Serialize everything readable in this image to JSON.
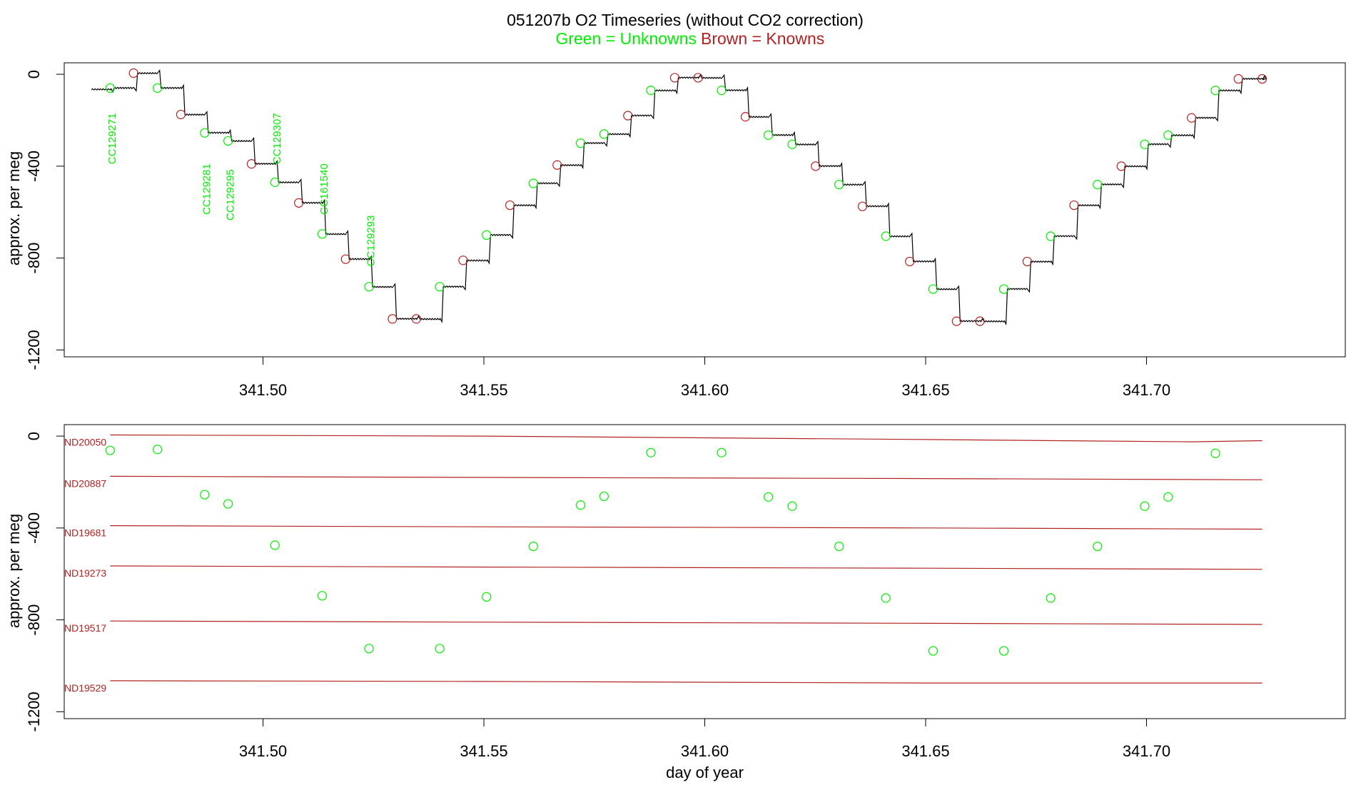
{
  "colors": {
    "unknown": "#00ee00",
    "known": "#b22222",
    "trace": "#000000",
    "axis": "#000000"
  },
  "header": {
    "title": "051207b   O2 Timeseries (without CO2 correction)",
    "legend_unknown": "Green = Unknowns",
    "legend_known": "Brown = Knowns"
  },
  "chart_data": [
    {
      "type": "line",
      "title": "051207b   O2 Timeseries (without CO2 correction)",
      "xlabel": "",
      "ylabel": "approx. per meg",
      "xlim": [
        341.455,
        341.745
      ],
      "ylim": [
        -1230,
        50
      ],
      "xticks": [
        341.5,
        341.55,
        341.6,
        341.65,
        341.7
      ],
      "xtick_labels": [
        "341.50",
        "341.55",
        "341.60",
        "341.65",
        "341.70"
      ],
      "yticks": [
        0,
        -400,
        -800,
        -1200
      ],
      "ytick_labels": [
        "0",
        "-400",
        "-800",
        "-1200"
      ],
      "grid": false,
      "trace_levels": [
        [
          341.4602,
          -65
        ],
        [
          341.4656,
          -60
        ],
        [
          341.4709,
          5
        ],
        [
          341.4762,
          -60
        ],
        [
          341.4816,
          -175
        ],
        [
          341.4869,
          -255
        ],
        [
          341.4922,
          -290
        ],
        [
          341.4975,
          -390
        ],
        [
          341.5028,
          -470
        ],
        [
          341.5082,
          -560
        ],
        [
          341.5135,
          -695
        ],
        [
          341.5188,
          -805
        ],
        [
          341.5241,
          -925
        ],
        [
          341.5295,
          -1065
        ],
        [
          341.5348,
          -1065
        ],
        [
          341.5401,
          -925
        ],
        [
          341.5454,
          -810
        ],
        [
          341.5508,
          -700
        ],
        [
          341.5561,
          -570
        ],
        [
          341.5614,
          -475
        ],
        [
          341.5667,
          -395
        ],
        [
          341.572,
          -300
        ],
        [
          341.5774,
          -260
        ],
        [
          341.5827,
          -180
        ],
        [
          341.588,
          -70
        ],
        [
          341.5933,
          -15
        ],
        [
          341.5986,
          -15
        ],
        [
          341.604,
          -70
        ],
        [
          341.6093,
          -185
        ],
        [
          341.6146,
          -265
        ],
        [
          341.6199,
          -305
        ],
        [
          341.6252,
          -400
        ],
        [
          341.6306,
          -480
        ],
        [
          341.6359,
          -575
        ],
        [
          341.6412,
          -705
        ],
        [
          341.6465,
          -815
        ],
        [
          341.6518,
          -935
        ],
        [
          341.6571,
          -1075
        ],
        [
          341.6625,
          -1075
        ],
        [
          341.6678,
          -935
        ],
        [
          341.6731,
          -815
        ],
        [
          341.6784,
          -705
        ],
        [
          341.6838,
          -570
        ],
        [
          341.6891,
          -480
        ],
        [
          341.6944,
          -400
        ],
        [
          341.6997,
          -305
        ],
        [
          341.705,
          -265
        ],
        [
          341.7104,
          -190
        ],
        [
          341.7157,
          -70
        ],
        [
          341.721,
          -20
        ],
        [
          341.7263,
          -20
        ]
      ],
      "trace_end_x": 341.7265,
      "series": [
        {
          "name": "Unknowns",
          "points": [
            [
              341.4654,
              -60
            ],
            [
              341.4761,
              -60
            ],
            [
              341.4868,
              -255
            ],
            [
              341.4921,
              -290
            ],
            [
              341.5027,
              -470
            ],
            [
              341.5134,
              -695
            ],
            [
              341.524,
              -925
            ],
            [
              341.54,
              -925
            ],
            [
              341.5506,
              -700
            ],
            [
              341.5612,
              -475
            ],
            [
              341.5719,
              -300
            ],
            [
              341.5772,
              -260
            ],
            [
              341.5878,
              -70
            ],
            [
              341.6038,
              -70
            ],
            [
              341.6144,
              -265
            ],
            [
              341.6198,
              -305
            ],
            [
              341.6304,
              -480
            ],
            [
              341.641,
              -705
            ],
            [
              341.6517,
              -935
            ],
            [
              341.6677,
              -935
            ],
            [
              341.6783,
              -705
            ],
            [
              341.6889,
              -480
            ],
            [
              341.6996,
              -305
            ],
            [
              341.7049,
              -265
            ],
            [
              341.7156,
              -70
            ]
          ]
        },
        {
          "name": "Knowns",
          "points": [
            [
              341.4707,
              5
            ],
            [
              341.4814,
              -175
            ],
            [
              341.4974,
              -390
            ],
            [
              341.5081,
              -560
            ],
            [
              341.5187,
              -805
            ],
            [
              341.5293,
              -1065
            ],
            [
              341.5347,
              -1065
            ],
            [
              341.5453,
              -810
            ],
            [
              341.5559,
              -570
            ],
            [
              341.5666,
              -395
            ],
            [
              341.5826,
              -180
            ],
            [
              341.5932,
              -15
            ],
            [
              341.5985,
              -15
            ],
            [
              341.6092,
              -185
            ],
            [
              341.6251,
              -400
            ],
            [
              341.6357,
              -575
            ],
            [
              341.6464,
              -815
            ],
            [
              341.657,
              -1075
            ],
            [
              341.6623,
              -1075
            ],
            [
              341.673,
              -815
            ],
            [
              341.6836,
              -570
            ],
            [
              341.6943,
              -400
            ],
            [
              341.7102,
              -190
            ],
            [
              341.7208,
              -20
            ],
            [
              341.7262,
              -20
            ]
          ]
        }
      ],
      "annotations": [
        {
          "text": "CC129271",
          "x": 341.4655,
          "y": -280
        },
        {
          "text": "CC129281",
          "x": 341.4869,
          "y": -500
        },
        {
          "text": "CC129295",
          "x": 341.4922,
          "y": -525
        },
        {
          "text": "CC129307",
          "x": 341.5028,
          "y": -280
        },
        {
          "text": "CC161540",
          "x": 341.5135,
          "y": -500
        },
        {
          "text": "CC129293",
          "x": 341.5241,
          "y": -725
        }
      ]
    },
    {
      "type": "scatter",
      "title": "",
      "xlabel": "day of year",
      "ylabel": "approx. per meg",
      "xlim": [
        341.455,
        341.745
      ],
      "ylim": [
        -1230,
        50
      ],
      "xticks": [
        341.5,
        341.55,
        341.6,
        341.65,
        341.7
      ],
      "xtick_labels": [
        "341.50",
        "341.55",
        "341.60",
        "341.65",
        "341.70"
      ],
      "yticks": [
        0,
        -400,
        -800,
        -1200
      ],
      "ytick_labels": [
        "0",
        "-400",
        "-800",
        "-1200"
      ],
      "grid": false,
      "series": [
        {
          "name": "Unknowns",
          "points": [
            [
              341.4654,
              -62
            ],
            [
              341.4761,
              -58
            ],
            [
              341.4868,
              -255
            ],
            [
              341.4921,
              -295
            ],
            [
              341.5027,
              -475
            ],
            [
              341.5134,
              -695
            ],
            [
              341.524,
              -925
            ],
            [
              341.54,
              -925
            ],
            [
              341.5506,
              -700
            ],
            [
              341.5612,
              -480
            ],
            [
              341.5719,
              -300
            ],
            [
              341.5772,
              -262
            ],
            [
              341.5878,
              -72
            ],
            [
              341.6038,
              -72
            ],
            [
              341.6144,
              -265
            ],
            [
              341.6198,
              -305
            ],
            [
              341.6304,
              -480
            ],
            [
              341.641,
              -705
            ],
            [
              341.6517,
              -935
            ],
            [
              341.6677,
              -935
            ],
            [
              341.6783,
              -705
            ],
            [
              341.6889,
              -480
            ],
            [
              341.6996,
              -305
            ],
            [
              341.7049,
              -265
            ],
            [
              341.7156,
              -75
            ]
          ]
        }
      ],
      "reference_lines": [
        {
          "name": "ND20050",
          "points": [
            [
              341.4654,
              5
            ],
            [
              341.55,
              0
            ],
            [
              341.65,
              -15
            ],
            [
              341.71,
              -25
            ],
            [
              341.7262,
              -20
            ]
          ]
        },
        {
          "name": "ND20887",
          "points": [
            [
              341.4654,
              -175
            ],
            [
              341.55,
              -180
            ],
            [
              341.65,
              -185
            ],
            [
              341.7262,
              -190
            ]
          ]
        },
        {
          "name": "ND19681",
          "points": [
            [
              341.4654,
              -390
            ],
            [
              341.55,
              -395
            ],
            [
              341.65,
              -400
            ],
            [
              341.7262,
              -405
            ]
          ]
        },
        {
          "name": "ND19273",
          "points": [
            [
              341.4654,
              -565
            ],
            [
              341.55,
              -570
            ],
            [
              341.65,
              -575
            ],
            [
              341.7262,
              -580
            ]
          ]
        },
        {
          "name": "ND19517",
          "points": [
            [
              341.4654,
              -805
            ],
            [
              341.55,
              -810
            ],
            [
              341.65,
              -815
            ],
            [
              341.7262,
              -820
            ]
          ]
        },
        {
          "name": "ND19529",
          "points": [
            [
              341.4654,
              -1065
            ],
            [
              341.55,
              -1068
            ],
            [
              341.65,
              -1075
            ],
            [
              341.7262,
              -1075
            ]
          ]
        }
      ]
    }
  ]
}
